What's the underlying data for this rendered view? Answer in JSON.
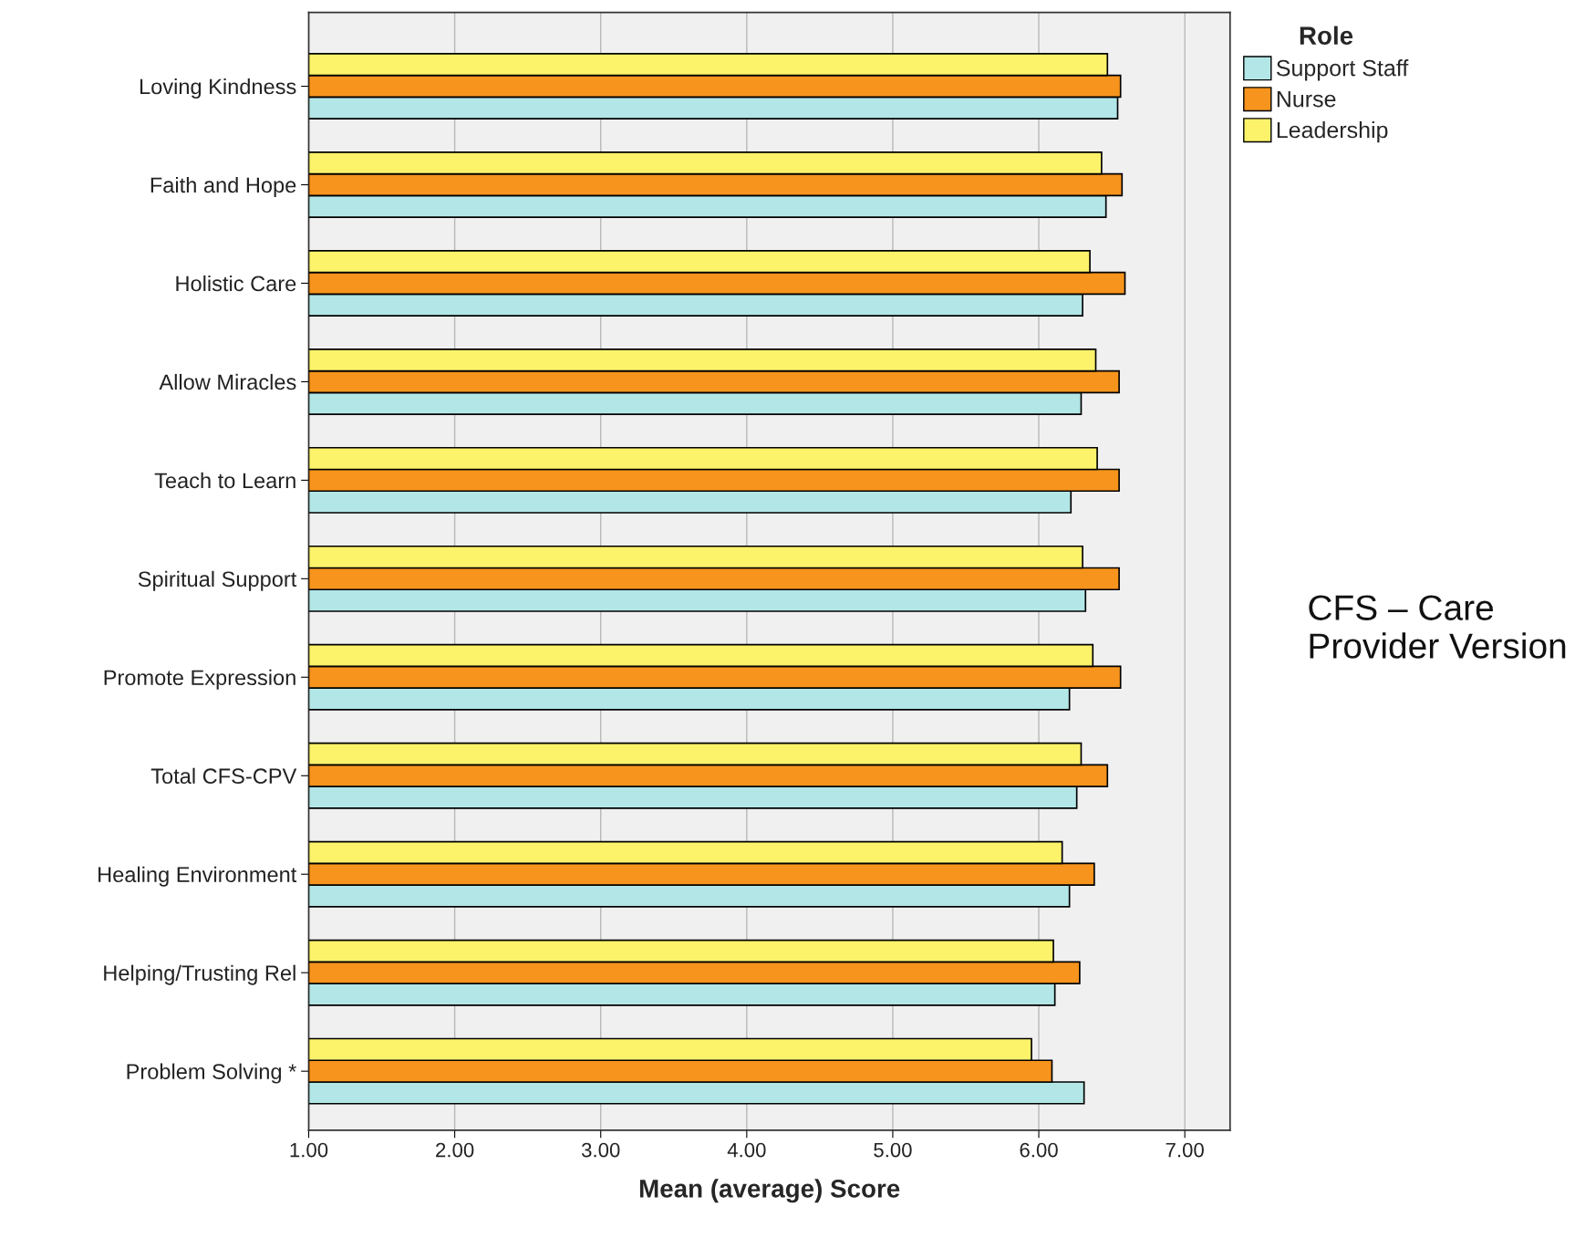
{
  "chart_data": {
    "type": "bar",
    "orientation": "horizontal",
    "xlabel": "Mean (average) Score",
    "legend_title": "Role",
    "categories": [
      "Loving Kindness",
      "Faith and Hope",
      "Holistic Care",
      "Allow Miracles",
      "Teach to Learn",
      "Spiritual Support",
      "Promote Expression",
      "Total CFS-CPV",
      "Healing Environment",
      "Helping/Trusting Rel",
      "Problem Solving *"
    ],
    "series": [
      {
        "name": "Support Staff",
        "color": "#b3e6e6",
        "values": [
          6.54,
          6.46,
          6.3,
          6.29,
          6.22,
          6.32,
          6.21,
          6.26,
          6.21,
          6.11,
          6.31
        ]
      },
      {
        "name": "Nurse",
        "color": "#f7941d",
        "values": [
          6.56,
          6.57,
          6.59,
          6.55,
          6.55,
          6.55,
          6.56,
          6.47,
          6.38,
          6.28,
          6.09
        ]
      },
      {
        "name": "Leadership",
        "color": "#fcf36b",
        "values": [
          6.47,
          6.43,
          6.35,
          6.39,
          6.4,
          6.3,
          6.37,
          6.29,
          6.16,
          6.1,
          5.95
        ]
      }
    ],
    "xlim": [
      1,
      7.31
    ],
    "xticks": [
      {
        "value": 1,
        "label": "1.00"
      },
      {
        "value": 2,
        "label": "2.00"
      },
      {
        "value": 3,
        "label": "3.00"
      },
      {
        "value": 4,
        "label": "4.00"
      },
      {
        "value": 5,
        "label": "5.00"
      },
      {
        "value": 6,
        "label": "6.00"
      },
      {
        "value": 7,
        "label": "7.00"
      }
    ],
    "grid": "x",
    "legend": "top right",
    "annotations": [
      "CFS – Care Provider Version"
    ]
  }
}
